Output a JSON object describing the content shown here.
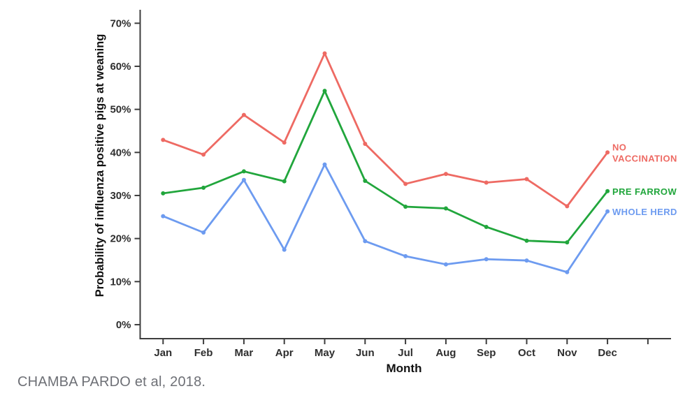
{
  "citation": {
    "text": "CHAMBA PARDO et al, 2018."
  },
  "colors": {
    "axis": "#3d3d3d",
    "tick_label": "#2e2e2e",
    "axis_title": "#111111",
    "citation": "#6e7076",
    "background": "#ffffff"
  },
  "chart_data": {
    "type": "line",
    "title": "",
    "xlabel": "Month",
    "ylabel": "Probability of influenza positive pigs at weaning",
    "categories": [
      "Jan",
      "Feb",
      "Mar",
      "Apr",
      "May",
      "Jun",
      "Jul",
      "Aug",
      "Sep",
      "Oct",
      "Nov",
      "Dec"
    ],
    "y_tick_labels": [
      "0%",
      "10%",
      "20%",
      "30%",
      "40%",
      "50%",
      "60%",
      "70%"
    ],
    "ylim": [
      0,
      73
    ],
    "grid": false,
    "legend_position": "right-of-line-endpoints",
    "series": [
      {
        "name": "NO VACCINATION",
        "color": "#ee6a63",
        "values": [
          42.9,
          39.5,
          48.7,
          42.3,
          63.0,
          42.0,
          32.7,
          35.0,
          33.0,
          33.8,
          27.5,
          40.0
        ]
      },
      {
        "name": "PRE FARROW",
        "color": "#21a63c",
        "values": [
          30.5,
          31.8,
          35.6,
          33.3,
          54.3,
          33.4,
          27.4,
          27.0,
          22.7,
          19.5,
          19.1,
          31.0
        ]
      },
      {
        "name": "WHOLE HERD",
        "color": "#6d9bf0",
        "values": [
          25.2,
          21.4,
          33.6,
          17.4,
          37.2,
          19.4,
          15.9,
          14.0,
          15.2,
          14.9,
          12.2,
          26.3
        ]
      }
    ]
  }
}
